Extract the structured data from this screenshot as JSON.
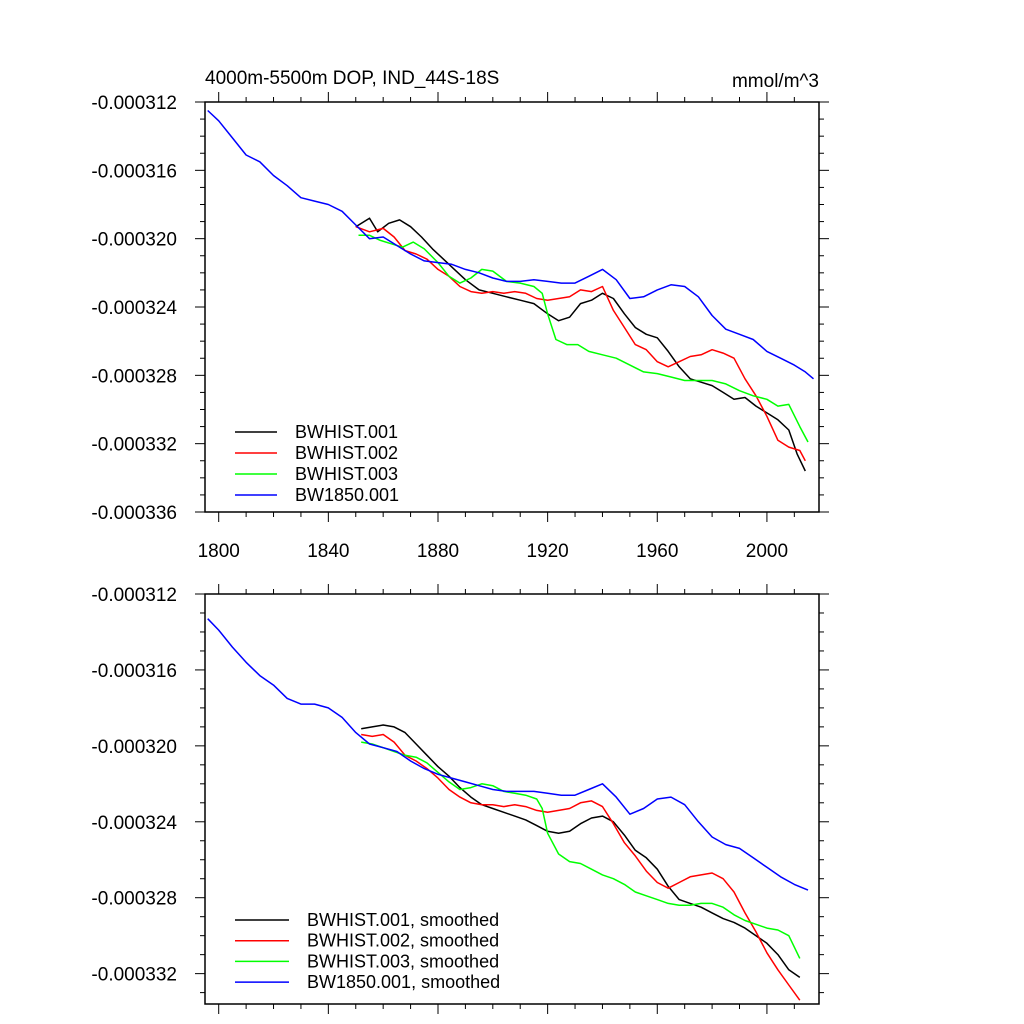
{
  "chart_data": [
    {
      "type": "line",
      "title": "4000m-5500m DOP, IND_44S-18S",
      "units": "mmol/m^3",
      "xlim": [
        1795,
        2019
      ],
      "ylim": [
        -0.000336,
        -0.000312
      ],
      "yticks": [
        -0.000312,
        -0.000316,
        -0.00032,
        -0.000324,
        -0.000328,
        -0.000332,
        -0.000336
      ],
      "ytick_labels": [
        "-0.000312",
        "-0.000316",
        "-0.000320",
        "-0.000324",
        "-0.000328",
        "-0.000332",
        "-0.000336"
      ],
      "xticks": [
        1800,
        1840,
        1880,
        1920,
        1960,
        2000
      ],
      "xtick_labels": [
        "1800",
        "1840",
        "1880",
        "1920",
        "1960",
        "2000"
      ],
      "legend_position": "bottom-left",
      "series": [
        {
          "name": "BWHIST.001",
          "color": "#000000",
          "x": [
            1850,
            1855,
            1858,
            1862,
            1866,
            1870,
            1874,
            1878,
            1882,
            1886,
            1890,
            1895,
            1900,
            1905,
            1910,
            1915,
            1920,
            1924,
            1928,
            1932,
            1936,
            1940,
            1944,
            1948,
            1952,
            1956,
            1960,
            1964,
            1968,
            1972,
            1976,
            1980,
            1984,
            1988,
            1992,
            1996,
            2000,
            2004,
            2008,
            2011,
            2014
          ],
          "y": [
            -0.0003193,
            -0.0003188,
            -0.0003196,
            -0.0003191,
            -0.0003189,
            -0.0003193,
            -0.0003199,
            -0.0003206,
            -0.0003212,
            -0.0003218,
            -0.0003224,
            -0.000323,
            -0.0003232,
            -0.0003234,
            -0.0003236,
            -0.0003238,
            -0.0003244,
            -0.0003248,
            -0.0003246,
            -0.0003238,
            -0.0003236,
            -0.0003232,
            -0.0003235,
            -0.0003244,
            -0.0003252,
            -0.0003256,
            -0.0003258,
            -0.0003266,
            -0.0003275,
            -0.0003282,
            -0.0003284,
            -0.0003286,
            -0.000329,
            -0.0003294,
            -0.0003293,
            -0.0003298,
            -0.0003302,
            -0.0003306,
            -0.0003312,
            -0.0003326,
            -0.0003336
          ]
        },
        {
          "name": "BWHIST.002",
          "color": "#ff0000",
          "x": [
            1850,
            1855,
            1860,
            1864,
            1868,
            1872,
            1876,
            1880,
            1884,
            1888,
            1892,
            1896,
            1900,
            1904,
            1908,
            1912,
            1916,
            1920,
            1924,
            1928,
            1932,
            1936,
            1940,
            1944,
            1948,
            1952,
            1956,
            1960,
            1964,
            1968,
            1972,
            1976,
            1980,
            1984,
            1988,
            1992,
            1996,
            2000,
            2004,
            2008,
            2012,
            2014
          ],
          "y": [
            -0.0003193,
            -0.0003196,
            -0.0003194,
            -0.0003199,
            -0.0003207,
            -0.0003209,
            -0.0003212,
            -0.0003218,
            -0.0003222,
            -0.0003228,
            -0.0003231,
            -0.0003232,
            -0.0003231,
            -0.0003232,
            -0.0003231,
            -0.0003232,
            -0.0003235,
            -0.0003236,
            -0.0003235,
            -0.0003234,
            -0.000323,
            -0.0003231,
            -0.0003228,
            -0.0003242,
            -0.0003252,
            -0.0003262,
            -0.0003265,
            -0.0003272,
            -0.0003275,
            -0.0003272,
            -0.0003269,
            -0.0003268,
            -0.0003265,
            -0.0003267,
            -0.000327,
            -0.0003282,
            -0.0003292,
            -0.0003304,
            -0.0003318,
            -0.0003322,
            -0.0003324,
            -0.000333
          ]
        },
        {
          "name": "BWHIST.003",
          "color": "#00ff00",
          "x": [
            1851,
            1855,
            1859,
            1863,
            1867,
            1871,
            1875,
            1880,
            1884,
            1888,
            1892,
            1896,
            1900,
            1905,
            1910,
            1915,
            1918,
            1920,
            1923,
            1927,
            1931,
            1935,
            1940,
            1945,
            1950,
            1955,
            1960,
            1965,
            1970,
            1975,
            1980,
            1985,
            1990,
            1995,
            2000,
            2004,
            2008,
            2012,
            2015
          ],
          "y": [
            -0.0003198,
            -0.0003198,
            -0.0003201,
            -0.0003203,
            -0.0003205,
            -0.0003202,
            -0.0003206,
            -0.0003214,
            -0.0003222,
            -0.0003226,
            -0.0003223,
            -0.0003218,
            -0.0003219,
            -0.0003225,
            -0.0003226,
            -0.0003228,
            -0.0003232,
            -0.0003244,
            -0.0003259,
            -0.0003262,
            -0.0003262,
            -0.0003266,
            -0.0003268,
            -0.000327,
            -0.0003274,
            -0.0003278,
            -0.0003279,
            -0.0003281,
            -0.0003283,
            -0.0003283,
            -0.0003283,
            -0.0003285,
            -0.0003289,
            -0.0003292,
            -0.0003294,
            -0.0003298,
            -0.0003297,
            -0.000331,
            -0.0003319
          ]
        },
        {
          "name": "BW1850.001",
          "color": "#0000ff",
          "x": [
            1796,
            1800,
            1805,
            1810,
            1815,
            1820,
            1825,
            1830,
            1835,
            1840,
            1845,
            1850,
            1855,
            1860,
            1865,
            1870,
            1875,
            1880,
            1885,
            1890,
            1895,
            1900,
            1905,
            1910,
            1915,
            1920,
            1925,
            1930,
            1935,
            1940,
            1945,
            1950,
            1955,
            1960,
            1965,
            1970,
            1975,
            1980,
            1985,
            1990,
            1995,
            2000,
            2005,
            2010,
            2014,
            2017
          ],
          "y": [
            -0.0003125,
            -0.0003131,
            -0.0003141,
            -0.0003151,
            -0.0003155,
            -0.0003163,
            -0.0003169,
            -0.0003176,
            -0.0003178,
            -0.000318,
            -0.0003184,
            -0.0003192,
            -0.00032,
            -0.0003199,
            -0.0003204,
            -0.0003209,
            -0.0003213,
            -0.0003214,
            -0.0003215,
            -0.0003218,
            -0.000322,
            -0.0003223,
            -0.0003225,
            -0.0003225,
            -0.0003224,
            -0.0003225,
            -0.0003226,
            -0.0003226,
            -0.0003222,
            -0.0003218,
            -0.0003224,
            -0.0003235,
            -0.0003234,
            -0.000323,
            -0.0003227,
            -0.0003228,
            -0.0003234,
            -0.0003245,
            -0.0003253,
            -0.0003256,
            -0.0003259,
            -0.0003266,
            -0.000327,
            -0.0003274,
            -0.0003278,
            -0.0003282
          ]
        }
      ]
    },
    {
      "type": "line",
      "xlim": [
        1795,
        2019
      ],
      "ylim": [
        -0.0003336,
        -0.000312
      ],
      "yticks": [
        -0.000312,
        -0.000316,
        -0.00032,
        -0.000324,
        -0.000328,
        -0.000332
      ],
      "ytick_labels": [
        "-0.000312",
        "-0.000316",
        "-0.000320",
        "-0.000324",
        "-0.000328",
        "-0.000332"
      ],
      "xticks": [
        1800,
        1840,
        1880,
        1920,
        1960,
        2000
      ],
      "legend_position": "bottom-left",
      "series": [
        {
          "name": "BWHIST.001, smoothed",
          "color": "#000000",
          "x": [
            1852,
            1856,
            1860,
            1864,
            1868,
            1872,
            1876,
            1880,
            1884,
            1888,
            1892,
            1896,
            1900,
            1904,
            1908,
            1912,
            1916,
            1920,
            1924,
            1928,
            1932,
            1936,
            1940,
            1944,
            1948,
            1952,
            1956,
            1960,
            1964,
            1968,
            1972,
            1976,
            1980,
            1984,
            1988,
            1992,
            1996,
            2000,
            2004,
            2008,
            2012
          ],
          "y": [
            -0.0003191,
            -0.000319,
            -0.0003189,
            -0.000319,
            -0.0003193,
            -0.0003199,
            -0.0003205,
            -0.0003211,
            -0.0003216,
            -0.0003222,
            -0.0003227,
            -0.0003231,
            -0.0003233,
            -0.0003235,
            -0.0003237,
            -0.0003239,
            -0.0003242,
            -0.0003245,
            -0.0003246,
            -0.0003245,
            -0.0003241,
            -0.0003238,
            -0.0003237,
            -0.000324,
            -0.0003247,
            -0.0003255,
            -0.0003259,
            -0.0003265,
            -0.0003274,
            -0.0003281,
            -0.0003283,
            -0.0003285,
            -0.0003288,
            -0.0003291,
            -0.0003293,
            -0.0003296,
            -0.00033,
            -0.0003304,
            -0.000331,
            -0.0003318,
            -0.0003322
          ]
        },
        {
          "name": "BWHIST.002, smoothed",
          "color": "#ff0000",
          "x": [
            1852,
            1856,
            1860,
            1864,
            1868,
            1872,
            1876,
            1880,
            1884,
            1888,
            1892,
            1896,
            1900,
            1904,
            1908,
            1912,
            1916,
            1920,
            1924,
            1928,
            1932,
            1936,
            1940,
            1944,
            1948,
            1952,
            1956,
            1960,
            1964,
            1968,
            1972,
            1976,
            1980,
            1984,
            1988,
            1992,
            1996,
            2000,
            2004,
            2008,
            2012
          ],
          "y": [
            -0.0003194,
            -0.0003195,
            -0.0003194,
            -0.0003198,
            -0.0003205,
            -0.0003208,
            -0.0003212,
            -0.0003217,
            -0.0003223,
            -0.0003227,
            -0.000323,
            -0.0003231,
            -0.0003231,
            -0.0003232,
            -0.0003231,
            -0.0003232,
            -0.0003234,
            -0.0003235,
            -0.0003234,
            -0.0003233,
            -0.000323,
            -0.0003229,
            -0.0003232,
            -0.0003241,
            -0.0003251,
            -0.0003258,
            -0.0003266,
            -0.0003272,
            -0.0003275,
            -0.0003272,
            -0.0003269,
            -0.0003268,
            -0.0003267,
            -0.000327,
            -0.0003277,
            -0.0003288,
            -0.0003298,
            -0.0003309,
            -0.0003318,
            -0.0003326,
            -0.0003334
          ]
        },
        {
          "name": "BWHIST.003, smoothed",
          "color": "#00ff00",
          "x": [
            1852,
            1856,
            1860,
            1864,
            1868,
            1872,
            1876,
            1880,
            1884,
            1888,
            1892,
            1896,
            1900,
            1904,
            1908,
            1912,
            1916,
            1918,
            1920,
            1924,
            1928,
            1932,
            1936,
            1940,
            1944,
            1948,
            1952,
            1956,
            1960,
            1964,
            1968,
            1972,
            1976,
            1980,
            1984,
            1988,
            1992,
            1996,
            2000,
            2004,
            2008,
            2012
          ],
          "y": [
            -0.0003198,
            -0.0003199,
            -0.0003201,
            -0.0003203,
            -0.0003205,
            -0.0003206,
            -0.0003209,
            -0.0003214,
            -0.0003219,
            -0.0003223,
            -0.0003222,
            -0.000322,
            -0.0003221,
            -0.0003224,
            -0.0003225,
            -0.0003226,
            -0.0003228,
            -0.0003233,
            -0.0003246,
            -0.0003257,
            -0.0003261,
            -0.0003262,
            -0.0003265,
            -0.0003268,
            -0.000327,
            -0.0003273,
            -0.0003277,
            -0.0003279,
            -0.0003281,
            -0.0003283,
            -0.0003284,
            -0.0003284,
            -0.0003283,
            -0.0003283,
            -0.0003285,
            -0.0003289,
            -0.0003292,
            -0.0003294,
            -0.0003296,
            -0.0003297,
            -0.00033,
            -0.0003312
          ]
        },
        {
          "name": "BW1850.001, smoothed",
          "color": "#0000ff",
          "x": [
            1796,
            1800,
            1805,
            1810,
            1815,
            1820,
            1825,
            1830,
            1835,
            1840,
            1845,
            1850,
            1855,
            1860,
            1865,
            1870,
            1875,
            1880,
            1885,
            1890,
            1895,
            1900,
            1905,
            1910,
            1915,
            1920,
            1925,
            1930,
            1935,
            1940,
            1945,
            1950,
            1955,
            1960,
            1965,
            1970,
            1975,
            1980,
            1985,
            1990,
            1995,
            2000,
            2005,
            2010,
            2015
          ],
          "y": [
            -0.0003133,
            -0.0003139,
            -0.0003148,
            -0.0003156,
            -0.0003163,
            -0.0003168,
            -0.0003175,
            -0.0003178,
            -0.0003178,
            -0.000318,
            -0.0003185,
            -0.0003193,
            -0.0003199,
            -0.0003201,
            -0.0003203,
            -0.0003208,
            -0.0003212,
            -0.0003215,
            -0.0003217,
            -0.0003219,
            -0.0003221,
            -0.0003223,
            -0.0003224,
            -0.0003224,
            -0.0003224,
            -0.0003225,
            -0.0003226,
            -0.0003226,
            -0.0003223,
            -0.000322,
            -0.0003227,
            -0.0003236,
            -0.0003233,
            -0.0003228,
            -0.0003227,
            -0.0003231,
            -0.000324,
            -0.0003248,
            -0.0003252,
            -0.0003254,
            -0.0003259,
            -0.0003264,
            -0.0003269,
            -0.0003273,
            -0.0003276
          ]
        }
      ]
    }
  ]
}
